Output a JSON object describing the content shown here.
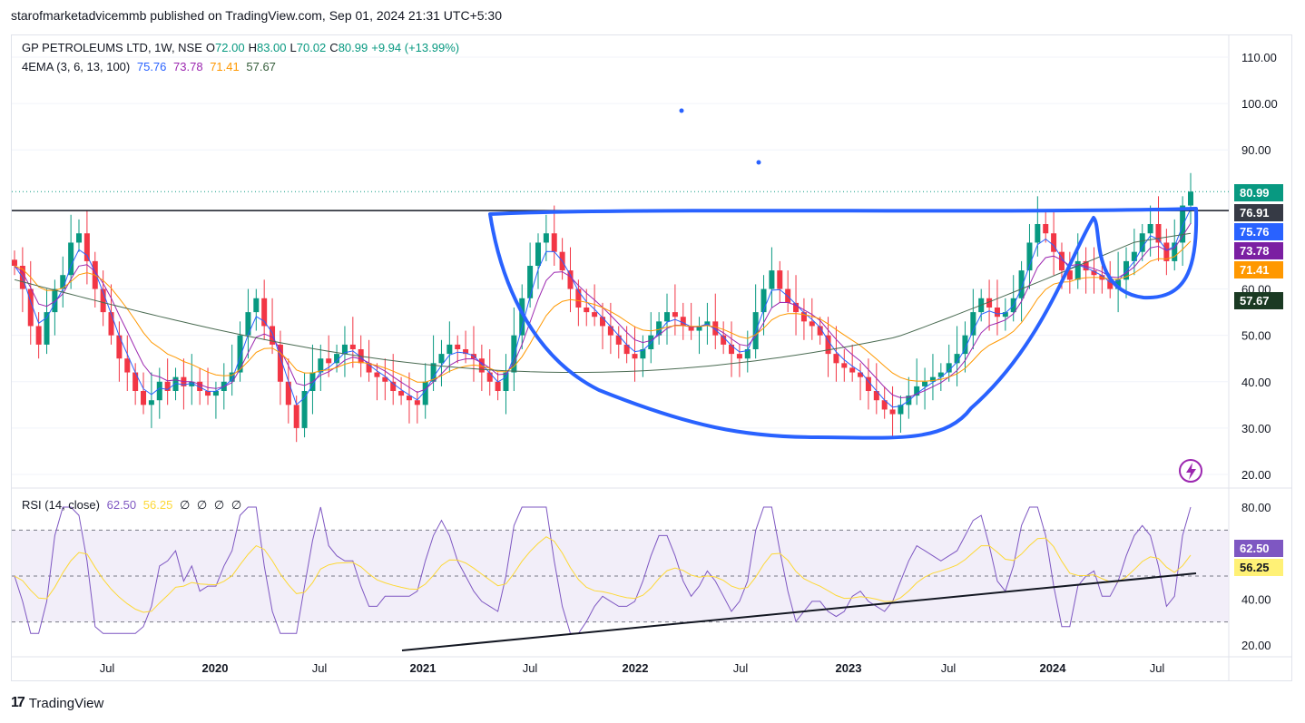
{
  "header": {
    "text": "starofmarketadvicemmb published on TradingView.com, Sep 01, 2024 21:31 UTC+5:30"
  },
  "legend": {
    "symbol": "GP PETROLEUMS LTD, 1W, NSE",
    "open_label": "O",
    "open": "72.00",
    "high_label": "H",
    "high": "83.00",
    "low_label": "L",
    "low": "70.02",
    "close_label": "C",
    "close": "80.99",
    "change": "+9.94 (+13.99%)",
    "ema_title": "4EMA (3, 6, 13, 100)",
    "ema_values": [
      "75.76",
      "73.78",
      "71.41",
      "57.67"
    ],
    "ema_colors": [
      "#2962ff",
      "#9c27b0",
      "#ff9800",
      "#355e3b"
    ]
  },
  "rsi_legend": {
    "title": "RSI (14, close)",
    "rsi": "62.50",
    "ma": "56.25",
    "extras": [
      "∅",
      "∅",
      "∅",
      "∅"
    ]
  },
  "price_axis": [
    "110.00",
    "100.00",
    "90.00",
    "60.00",
    "50.00",
    "40.00",
    "30.00",
    "20.00"
  ],
  "rsi_axis": [
    "80.00",
    "40.00",
    "20.00"
  ],
  "time_axis": [
    "Jul",
    "2020",
    "Jul",
    "2021",
    "Jul",
    "2022",
    "Jul",
    "2023",
    "Jul",
    "2024",
    "Jul"
  ],
  "price_labels": [
    {
      "text": "80.99",
      "color": "#089981"
    },
    {
      "text": "76.91",
      "color": "#363a45"
    },
    {
      "text": "75.76",
      "color": "#2962ff"
    },
    {
      "text": "73.78",
      "color": "#7b1fa2"
    },
    {
      "text": "71.41",
      "color": "#ff9800"
    },
    {
      "text": "57.67",
      "color": "#1b3a23"
    }
  ],
  "rsi_labels": [
    {
      "text": "62.50",
      "color": "#7e57c2"
    },
    {
      "text": "56.25",
      "color": "#fff176"
    }
  ],
  "footer": {
    "logo": "17",
    "brand": "TradingView"
  },
  "colors": {
    "up": "#089981",
    "down": "#f23645",
    "drawing": "#2962ff",
    "rsi": "#7e57c2",
    "rsi_ma": "#fdd835"
  },
  "chart_data": {
    "type": "candlestick",
    "title": "GP PETROLEUMS LTD, 1W, NSE",
    "y_range": [
      20,
      110
    ],
    "resistance_level": 76.91,
    "ema_100_last": 57.67,
    "close_series_approx": [
      65,
      60,
      52,
      48,
      55,
      60,
      63,
      70,
      72,
      66,
      60,
      55,
      50,
      45,
      42,
      38,
      35,
      36,
      40,
      38,
      41,
      39,
      40,
      38,
      37,
      38,
      40,
      42,
      50,
      55,
      58,
      52,
      48,
      40,
      35,
      30,
      38,
      42,
      45,
      44,
      46,
      48,
      47,
      44,
      42,
      41,
      40,
      38,
      37,
      36,
      35,
      40,
      44,
      46,
      48,
      47,
      46,
      45,
      42,
      40,
      38,
      42,
      50,
      58,
      65,
      70,
      72,
      68,
      64,
      60,
      56,
      55,
      54,
      52,
      50,
      48,
      46,
      45,
      47,
      50,
      53,
      55,
      54,
      52,
      51,
      52,
      53,
      50,
      48,
      46,
      45,
      47,
      55,
      60,
      64,
      60,
      57,
      55,
      53,
      52,
      50,
      46,
      44,
      43,
      42,
      41,
      38,
      36,
      34,
      33,
      35,
      37,
      39,
      40,
      41,
      42,
      44,
      46,
      50,
      55,
      58,
      56,
      54,
      55,
      58,
      64,
      70,
      74,
      72,
      68,
      64,
      62,
      66,
      64,
      63,
      62,
      60,
      62,
      66,
      68,
      72,
      74,
      70,
      66,
      70,
      78,
      81
    ],
    "rsi_range": [
      20,
      80
    ],
    "rsi_bands": [
      30,
      70
    ]
  }
}
